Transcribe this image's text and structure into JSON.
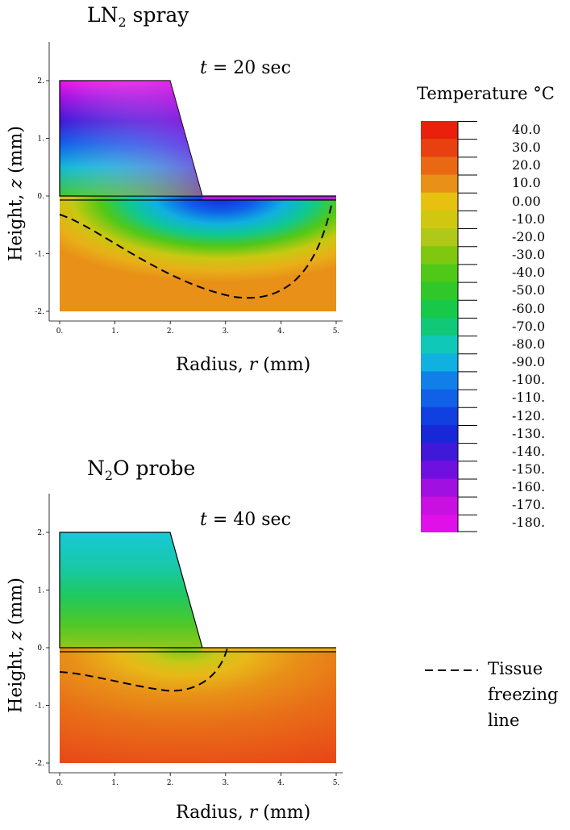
{
  "panels": [
    {
      "title_main": "LN",
      "title_sub": "2",
      "title_rest": " spray",
      "time_label": "t",
      "time_value": "= 20 sec",
      "xlabel_pre": "Radius, ",
      "xlabel_var": "r",
      "xlabel_post": " (mm)",
      "ylabel_pre": "Height, ",
      "ylabel_var": "z",
      "ylabel_post": " (mm)",
      "xticks": [
        "0.",
        "1.",
        "2.",
        "3.",
        "4.",
        "5."
      ],
      "yticks": [
        "2.",
        "1.",
        "0.",
        "-1.",
        "-2."
      ],
      "field_colors": {
        "top": "#e818e0",
        "upper": "#1840f0",
        "mid": "#10c8d0",
        "low": "#50c830",
        "warm": "#e8b818",
        "base": "#e89018"
      }
    },
    {
      "title_main": "N",
      "title_sub": "2",
      "title_rest": "O probe",
      "time_label": "t",
      "time_value": "= 40 sec",
      "xlabel_pre": "Radius, ",
      "xlabel_var": "r",
      "xlabel_post": " (mm)",
      "ylabel_pre": "Height, ",
      "ylabel_var": "z",
      "ylabel_post": " (mm)",
      "xticks": [
        "0.",
        "1.",
        "2.",
        "3.",
        "4.",
        "5."
      ],
      "yticks": [
        "2.",
        "1.",
        "0.",
        "-1.",
        "-2."
      ],
      "field_colors": {
        "top": "#18c0d8",
        "upper": "#20c890",
        "mid": "#50c830",
        "low": "#e0c018",
        "warm": "#e89018",
        "base": "#e85818"
      }
    }
  ],
  "colorbar": {
    "title": "Temperature °C",
    "labels": [
      "40.0",
      "30.0",
      "20.0",
      "10.0",
      "0.00",
      "-10.0",
      "-20.0",
      "-30.0",
      "-40.0",
      "-50.0",
      "-60.0",
      "-70.0",
      "-80.0",
      "-90.0",
      "-100.",
      "-110.",
      "-120.",
      "-130.",
      "-140.",
      "-150.",
      "-160.",
      "-170.",
      "-180."
    ],
    "colors": [
      "#e8200c",
      "#e84010",
      "#e86814",
      "#e89018",
      "#e8c010",
      "#d0c810",
      "#b0c818",
      "#80c810",
      "#50c818",
      "#30c828",
      "#18c848",
      "#10c878",
      "#10c8b8",
      "#10b0e0",
      "#1080e8",
      "#1060e8",
      "#1040e0",
      "#1828d8",
      "#4018d8",
      "#7010e0",
      "#a010e0",
      "#c810e0",
      "#e010e8"
    ]
  },
  "legend": {
    "line1": "Tissue",
    "line2": "freezing",
    "line3": "line"
  }
}
